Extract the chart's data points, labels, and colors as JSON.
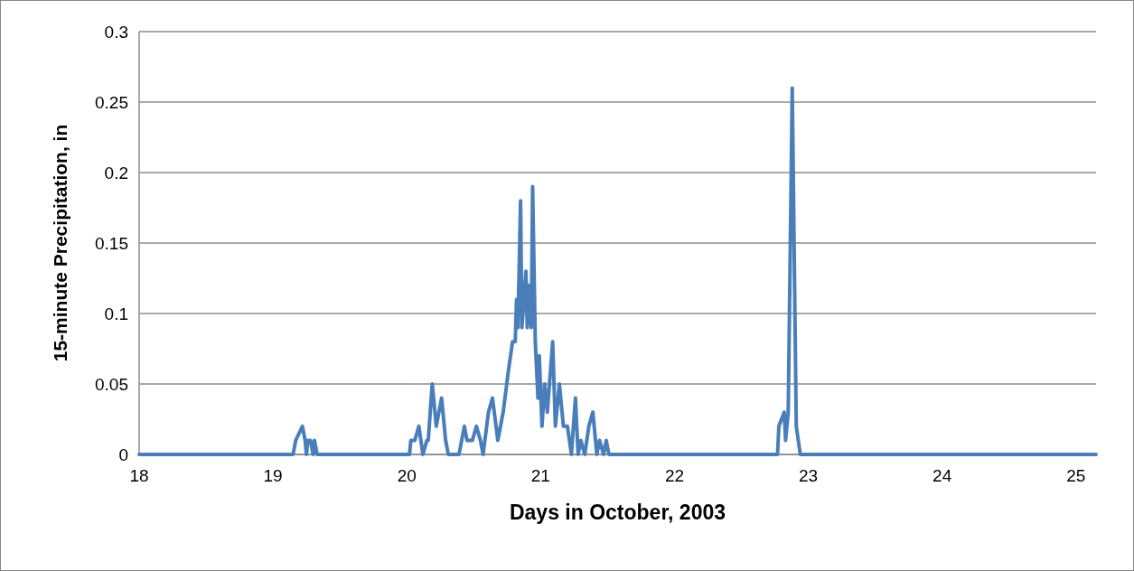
{
  "chart_data": {
    "type": "line",
    "xlabel": "Days in October, 2003",
    "ylabel": "15-minute Precipitation, in",
    "xlim": [
      18,
      25.15
    ],
    "xticks": [
      18,
      19,
      20,
      21,
      22,
      23,
      24,
      25
    ],
    "ylim": [
      0,
      0.3
    ],
    "yticks": [
      0,
      0.05,
      0.1,
      0.15,
      0.2,
      0.25,
      0.3
    ],
    "grid": "y",
    "marker": "none",
    "line_style": "solid",
    "series": [
      {
        "color": "#4a7ebb",
        "x": [
          18.0,
          19.15,
          19.17,
          19.22,
          19.24,
          19.25,
          19.26,
          19.28,
          19.3,
          19.31,
          19.33,
          20.02,
          20.03,
          20.06,
          20.09,
          20.12,
          20.15,
          20.16,
          20.19,
          20.22,
          20.26,
          20.29,
          20.31,
          20.39,
          20.41,
          20.43,
          20.45,
          20.49,
          20.52,
          20.55,
          20.57,
          20.61,
          20.64,
          20.68,
          20.72,
          20.76,
          20.79,
          20.81,
          20.82,
          20.83,
          20.85,
          20.86,
          20.89,
          20.9,
          20.91,
          20.93,
          20.94,
          20.96,
          20.98,
          20.99,
          21.01,
          21.03,
          21.05,
          21.09,
          21.11,
          21.14,
          21.17,
          21.2,
          21.23,
          21.26,
          21.28,
          21.3,
          21.33,
          21.36,
          21.39,
          21.42,
          21.44,
          21.47,
          21.49,
          21.51,
          22.77,
          22.78,
          22.82,
          22.83,
          22.85,
          22.88,
          22.91,
          22.94,
          25.15
        ],
        "values": [
          0,
          0,
          0.01,
          0.02,
          0.01,
          0,
          0.01,
          0.01,
          0,
          0.01,
          0,
          0,
          0.01,
          0.01,
          0.02,
          0,
          0.01,
          0.01,
          0.05,
          0.02,
          0.04,
          0.01,
          0,
          0,
          0.01,
          0.02,
          0.01,
          0.01,
          0.02,
          0.01,
          0,
          0.03,
          0.04,
          0.01,
          0.03,
          0.06,
          0.08,
          0.08,
          0.11,
          0.09,
          0.18,
          0.09,
          0.13,
          0.09,
          0.12,
          0.09,
          0.19,
          0.08,
          0.04,
          0.07,
          0.02,
          0.05,
          0.03,
          0.08,
          0.02,
          0.05,
          0.02,
          0.02,
          0,
          0.04,
          0,
          0.01,
          0,
          0.02,
          0.03,
          0,
          0.01,
          0,
          0.01,
          0,
          0,
          0.02,
          0.03,
          0.01,
          0.03,
          0.26,
          0.02,
          0,
          0
        ]
      }
    ]
  }
}
